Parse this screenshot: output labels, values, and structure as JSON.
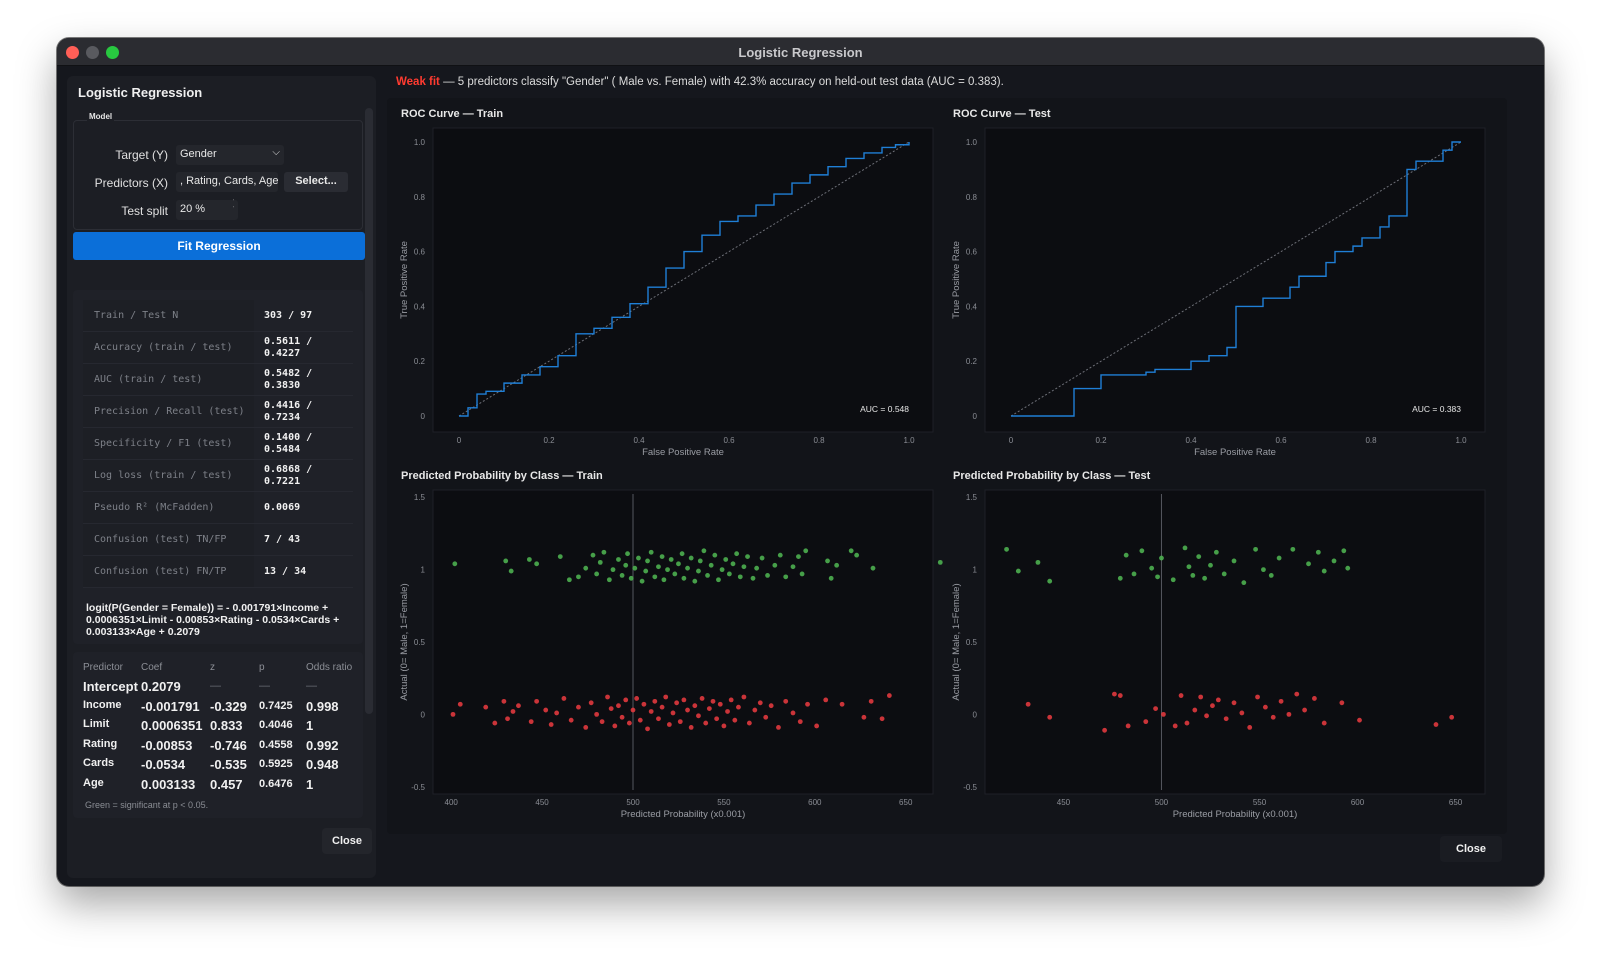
{
  "window": {
    "title": "Logistic Regression"
  },
  "left": {
    "title": "Logistic Regression",
    "model_group": "Model",
    "target_label": "Target (Y)",
    "target_value": "Gender",
    "predictors_label": "Predictors (X)",
    "predictors_value": ", Rating, Cards, Age",
    "select_label": "Select...",
    "split_label": "Test split",
    "split_value": "20 %",
    "fit_label": "Fit Regression",
    "stats": [
      {
        "label": "Train / Test N",
        "value": "303 / 97"
      },
      {
        "label": "Accuracy (train / test)",
        "value": "0.5611 /\n0.4227"
      },
      {
        "label": "AUC (train / test)",
        "value": "0.5482 /\n0.3830"
      },
      {
        "label": "Precision / Recall (test)",
        "value": "0.4416 /\n0.7234"
      },
      {
        "label": "Specificity / F1 (test)",
        "value": "0.1400 /\n0.5484"
      },
      {
        "label": "Log loss (train / test)",
        "value": "0.6868 /\n0.7221"
      },
      {
        "label": "Pseudo R² (McFadden)",
        "value": "0.0069"
      },
      {
        "label": "Confusion (test) TN/FP",
        "value": "7 / 43"
      },
      {
        "label": "Confusion (test) FN/TP",
        "value": "13 / 34"
      }
    ],
    "equation": "logit(P(Gender = Female)) = - 0.001791×Income + 0.0006351×Limit - 0.00853×Rating - 0.0534×Cards + 0.003133×Age + 0.2079",
    "coef_headers": {
      "predictor": "Predictor",
      "coef": "Coef",
      "z": "z",
      "p": "p",
      "odds": "Odds ratio"
    },
    "coefs": [
      {
        "name": "Intercept",
        "coef": "0.2079",
        "z": "—",
        "p": "—",
        "odds": "—"
      },
      {
        "name": "Income",
        "coef": "-0.001791",
        "z": "-0.329",
        "p": "0.7425",
        "odds": "0.998"
      },
      {
        "name": "Limit",
        "coef": "0.0006351",
        "z": "0.833",
        "p": "0.4046",
        "odds": "1"
      },
      {
        "name": "Rating",
        "coef": "-0.00853",
        "z": "-0.746",
        "p": "0.4558",
        "odds": "0.992"
      },
      {
        "name": "Cards",
        "coef": "-0.0534",
        "z": "-0.535",
        "p": "0.5925",
        "odds": "0.948"
      },
      {
        "name": "Age",
        "coef": "0.003133",
        "z": "0.457",
        "p": "0.6476",
        "odds": "1"
      }
    ],
    "coef_note": "Green = significant at p < 0.05.",
    "close_label": "Close"
  },
  "summary": {
    "tag": "Weak fit",
    "text": " — 5 predictors classify \"Gender\" ( Male vs. Female) with 42.3% accuracy on held-out test data (AUC = 0.383)."
  },
  "close_label": "Close",
  "colors": {
    "accent": "#0b6fd9",
    "roc_line": "#1f7fd6",
    "female": "#4caf50",
    "male": "#e0393e",
    "weak": "#ff3b30"
  },
  "chart_data": [
    {
      "type": "line",
      "title": "ROC Curve — Train",
      "xlabel": "False Positive Rate",
      "ylabel": "True Positive Rate",
      "xlim": [
        0,
        1
      ],
      "ylim": [
        0,
        1
      ],
      "xticks": [
        "0",
        "0.2",
        "0.4",
        "0.6",
        "0.8",
        "1.0"
      ],
      "yticks": [
        "0",
        "0.2",
        "0.4",
        "0.6",
        "0.8",
        "1.0"
      ],
      "annotation": "AUC = 0.548",
      "series": [
        {
          "x": [
            0,
            0.02,
            0.04,
            0.06,
            0.1,
            0.14,
            0.18,
            0.22,
            0.26,
            0.3,
            0.34,
            0.38,
            0.42,
            0.46,
            0.5,
            0.54,
            0.58,
            0.62,
            0.66,
            0.7,
            0.74,
            0.78,
            0.82,
            0.86,
            0.9,
            0.94,
            0.97,
            1.0
          ],
          "y": [
            0,
            0.03,
            0.08,
            0.09,
            0.12,
            0.15,
            0.18,
            0.22,
            0.3,
            0.32,
            0.36,
            0.41,
            0.47,
            0.54,
            0.6,
            0.66,
            0.71,
            0.73,
            0.77,
            0.81,
            0.85,
            0.88,
            0.91,
            0.94,
            0.96,
            0.98,
            0.99,
            1.0
          ]
        },
        {
          "x": [
            0,
            1
          ],
          "y": [
            0,
            1
          ]
        }
      ]
    },
    {
      "type": "line",
      "title": "ROC Curve — Test",
      "xlabel": "False Positive Rate",
      "ylabel": "True Positive Rate",
      "xlim": [
        0,
        1
      ],
      "ylim": [
        0,
        1
      ],
      "xticks": [
        "0",
        "0.2",
        "0.4",
        "0.6",
        "0.8",
        "1.0"
      ],
      "yticks": [
        "0",
        "0.2",
        "0.4",
        "0.6",
        "0.8",
        "1.0"
      ],
      "annotation": "AUC = 0.383",
      "series": [
        {
          "x": [
            0,
            0.14,
            0.14,
            0.2,
            0.3,
            0.32,
            0.4,
            0.44,
            0.48,
            0.5,
            0.5,
            0.56,
            0.62,
            0.64,
            0.7,
            0.72,
            0.76,
            0.78,
            0.82,
            0.84,
            0.88,
            0.88,
            0.9,
            0.96,
            0.98,
            1.0
          ],
          "y": [
            0,
            0.0,
            0.1,
            0.15,
            0.16,
            0.17,
            0.2,
            0.22,
            0.25,
            0.28,
            0.4,
            0.43,
            0.47,
            0.51,
            0.56,
            0.6,
            0.62,
            0.65,
            0.69,
            0.73,
            0.76,
            0.9,
            0.93,
            0.97,
            1.0,
            1.0
          ]
        },
        {
          "x": [
            0,
            1
          ],
          "y": [
            0,
            1
          ]
        }
      ]
    },
    {
      "type": "scatter",
      "title": "Predicted Probability by Class — Train",
      "xlabel": "Predicted Probability (x0.001)",
      "ylabel": "Actual (0= Male, 1=Female)",
      "xlim": [
        390,
        665
      ],
      "ylim": [
        -0.55,
        1.55
      ],
      "xticks": [
        400,
        450,
        500,
        550,
        600,
        650
      ],
      "yticks": [
        -0.5,
        0,
        0.5,
        1.0,
        1.5
      ],
      "threshold": 500,
      "series": [
        {
          "name": "Female",
          "x": [
            402,
            430,
            433,
            443,
            447,
            460,
            465,
            470,
            474,
            478,
            480,
            482,
            484,
            487,
            489,
            492,
            494,
            496,
            497,
            499,
            501,
            503,
            505,
            507,
            508,
            510,
            512,
            514,
            516,
            517,
            519,
            521,
            523,
            525,
            527,
            528,
            530,
            532,
            534,
            536,
            537,
            539,
            541,
            543,
            545,
            547,
            549,
            551,
            553,
            555,
            557,
            559,
            561,
            563,
            566,
            568,
            571,
            574,
            578,
            581,
            584,
            588,
            591,
            593,
            595,
            607,
            609,
            612,
            620,
            623,
            632,
            669
          ],
          "y": [
            1.04,
            1.06,
            0.99,
            1.07,
            1.04,
            1.09,
            0.93,
            0.95,
            1.01,
            1.1,
            0.97,
            1.05,
            1.12,
            0.93,
            1.0,
            1.07,
            0.96,
            1.03,
            1.11,
            0.94,
            1.01,
            1.08,
            0.92,
            0.99,
            1.06,
            1.12,
            0.95,
            1.02,
            1.09,
            0.93,
            1.0,
            1.07,
            0.97,
            1.04,
            1.11,
            0.94,
            1.01,
            1.08,
            0.92,
            0.99,
            1.06,
            1.13,
            0.96,
            1.03,
            1.1,
            0.93,
            1.0,
            1.07,
            0.97,
            1.04,
            1.11,
            0.95,
            1.02,
            1.09,
            0.94,
            1.01,
            1.08,
            0.96,
            1.03,
            1.1,
            0.95,
            1.02,
            1.09,
            0.97,
            1.13,
            1.06,
            0.94,
            1.03,
            1.13,
            1.1,
            1.01,
            1.05
          ]
        },
        {
          "name": "Male",
          "x": [
            401,
            405,
            419,
            424,
            429,
            431,
            434,
            437,
            444,
            447,
            452,
            455,
            458,
            462,
            466,
            470,
            474,
            477,
            480,
            483,
            486,
            488,
            490,
            492,
            494,
            496,
            498,
            500,
            502,
            504,
            506,
            508,
            510,
            512,
            514,
            516,
            518,
            520,
            522,
            524,
            526,
            528,
            530,
            532,
            534,
            536,
            538,
            540,
            542,
            544,
            546,
            548,
            550,
            552,
            554,
            556,
            558,
            561,
            564,
            567,
            570,
            573,
            576,
            580,
            584,
            588,
            592,
            596,
            601,
            606,
            615,
            627,
            631,
            637,
            641
          ],
          "y": [
            0.0,
            0.07,
            0.05,
            -0.06,
            0.09,
            -0.03,
            0.02,
            0.06,
            -0.05,
            0.09,
            0.03,
            -0.07,
            0.01,
            0.11,
            -0.04,
            0.05,
            -0.09,
            0.08,
            0.0,
            -0.05,
            0.12,
            0.04,
            -0.08,
            0.06,
            -0.02,
            0.1,
            -0.06,
            0.03,
            0.11,
            -0.04,
            0.07,
            -0.1,
            0.02,
            0.09,
            -0.03,
            0.05,
            0.12,
            -0.07,
            0.01,
            0.08,
            -0.05,
            0.1,
            0.03,
            -0.09,
            0.06,
            -0.01,
            0.11,
            -0.06,
            0.04,
            0.09,
            -0.03,
            0.07,
            -0.08,
            0.02,
            0.1,
            -0.04,
            0.05,
            0.12,
            -0.06,
            0.03,
            0.08,
            -0.02,
            0.06,
            -0.09,
            0.09,
            0.01,
            -0.05,
            0.07,
            -0.08,
            0.1,
            0.07,
            -0.02,
            0.09,
            -0.03,
            0.13
          ]
        }
      ]
    },
    {
      "type": "scatter",
      "title": "Predicted Probability by Class — Test",
      "xlabel": "Predicted Probability (x0.001)",
      "ylabel": "Actual (0= Male, 1=Female)",
      "xlim": [
        410,
        665
      ],
      "ylim": [
        -0.55,
        1.55
      ],
      "xticks": [
        450,
        500,
        550,
        600,
        650
      ],
      "yticks": [
        -0.5,
        0,
        0.5,
        1.0,
        1.5
      ],
      "threshold": 500,
      "series": [
        {
          "name": "Female",
          "x": [
            421,
            427,
            437,
            443,
            479,
            482,
            486,
            490,
            495,
            498,
            500,
            506,
            512,
            514,
            516,
            519,
            522,
            525,
            528,
            532,
            537,
            542,
            548,
            552,
            556,
            560,
            567,
            575,
            580,
            583,
            588,
            593,
            595
          ],
          "y": [
            1.14,
            0.99,
            1.05,
            0.92,
            0.94,
            1.1,
            0.97,
            1.13,
            1.01,
            0.95,
            1.08,
            0.93,
            1.15,
            1.02,
            0.96,
            1.09,
            0.94,
            1.03,
            1.12,
            0.97,
            1.06,
            0.91,
            1.14,
            1.0,
            0.96,
            1.08,
            1.14,
            1.04,
            1.12,
            0.99,
            1.06,
            1.13,
            1.01
          ]
        },
        {
          "name": "Male",
          "x": [
            432,
            443,
            471,
            476,
            479,
            483,
            492,
            497,
            501,
            507,
            510,
            513,
            517,
            520,
            523,
            526,
            529,
            533,
            537,
            541,
            545,
            549,
            553,
            557,
            561,
            565,
            569,
            573,
            578,
            583,
            592,
            601,
            640,
            648
          ],
          "y": [
            0.07,
            -0.02,
            -0.11,
            0.14,
            0.13,
            -0.08,
            -0.05,
            0.04,
            0.0,
            -0.08,
            0.13,
            -0.06,
            0.03,
            0.12,
            -0.01,
            0.06,
            0.1,
            -0.03,
            0.08,
            0.01,
            -0.09,
            0.12,
            0.05,
            -0.02,
            0.09,
            0.0,
            0.14,
            0.03,
            0.11,
            -0.06,
            0.08,
            -0.04,
            -0.07,
            -0.02
          ]
        }
      ]
    }
  ]
}
